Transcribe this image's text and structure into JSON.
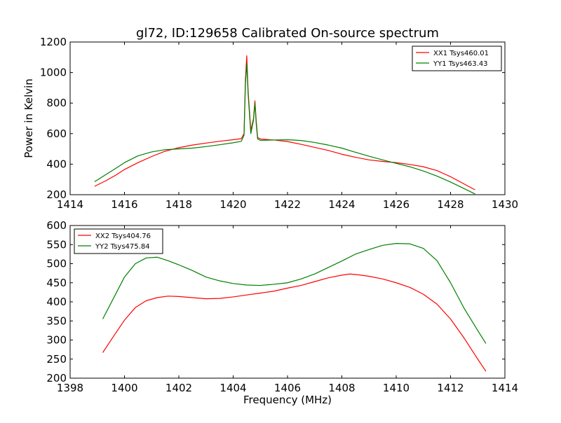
{
  "title": "gl72, ID:129658 Calibrated On-source spectrum",
  "chart_data": [
    {
      "type": "line",
      "ylabel": "Power in Kelvin",
      "xlabel": "",
      "xlim": [
        1414,
        1430
      ],
      "ylim": [
        200,
        1200
      ],
      "xticks": [
        1414,
        1416,
        1418,
        1420,
        1422,
        1424,
        1426,
        1428,
        1430
      ],
      "yticks": [
        200,
        400,
        600,
        800,
        1000,
        1200
      ],
      "grid": false,
      "legend_position": "top-right",
      "series": [
        {
          "name": "XX1 Tsys460.01",
          "color": "#ff0000",
          "x": [
            1414.9,
            1415.3,
            1415.7,
            1416.0,
            1416.5,
            1417.0,
            1417.5,
            1418.0,
            1418.5,
            1419.0,
            1419.5,
            1420.0,
            1420.3,
            1420.4,
            1420.45,
            1420.5,
            1420.55,
            1420.65,
            1420.75,
            1420.8,
            1420.85,
            1420.9,
            1421.0,
            1421.5,
            1422.0,
            1422.5,
            1423.0,
            1423.5,
            1424.0,
            1424.5,
            1425.0,
            1425.5,
            1426.0,
            1426.5,
            1427.0,
            1427.5,
            1428.0,
            1428.5,
            1428.9
          ],
          "y": [
            255,
            290,
            330,
            365,
            410,
            450,
            485,
            508,
            525,
            538,
            550,
            560,
            567,
            600,
            950,
            1110,
            880,
            620,
            700,
            815,
            680,
            575,
            565,
            558,
            548,
            530,
            510,
            490,
            465,
            445,
            428,
            418,
            410,
            398,
            383,
            358,
            318,
            270,
            232
          ]
        },
        {
          "name": "YY1 Tsys463.43",
          "color": "#008000",
          "x": [
            1414.9,
            1415.3,
            1415.7,
            1416.0,
            1416.5,
            1417.0,
            1417.5,
            1418.0,
            1418.5,
            1419.0,
            1419.5,
            1420.0,
            1420.3,
            1420.4,
            1420.45,
            1420.5,
            1420.55,
            1420.65,
            1420.75,
            1420.8,
            1420.85,
            1420.9,
            1421.0,
            1421.5,
            1422.0,
            1422.5,
            1423.0,
            1423.5,
            1424.0,
            1424.5,
            1425.0,
            1425.5,
            1426.0,
            1426.5,
            1427.0,
            1427.5,
            1428.0,
            1428.5,
            1428.9
          ],
          "y": [
            285,
            330,
            375,
            410,
            455,
            480,
            495,
            500,
            505,
            515,
            527,
            540,
            550,
            590,
            920,
            1060,
            860,
            600,
            690,
            800,
            660,
            565,
            556,
            558,
            560,
            555,
            542,
            525,
            505,
            478,
            452,
            428,
            405,
            383,
            355,
            322,
            283,
            240,
            205
          ]
        }
      ]
    },
    {
      "type": "line",
      "ylabel": "",
      "xlabel": "Frequency (MHz)",
      "xlim": [
        1398,
        1414
      ],
      "ylim": [
        200,
        600
      ],
      "xticks": [
        1398,
        1400,
        1402,
        1404,
        1406,
        1408,
        1410,
        1412,
        1414
      ],
      "yticks": [
        200,
        250,
        300,
        350,
        400,
        450,
        500,
        550,
        600
      ],
      "grid": false,
      "legend_position": "top-left",
      "series": [
        {
          "name": "XX2 Tsys404.76",
          "color": "#ff0000",
          "x": [
            1399.2,
            1399.6,
            1400.0,
            1400.4,
            1400.8,
            1401.2,
            1401.6,
            1402.0,
            1402.5,
            1403.0,
            1403.5,
            1404.0,
            1404.5,
            1405.0,
            1405.5,
            1406.0,
            1406.5,
            1407.0,
            1407.5,
            1408.0,
            1408.3,
            1408.7,
            1409.0,
            1409.5,
            1410.0,
            1410.5,
            1411.0,
            1411.5,
            1412.0,
            1412.5,
            1413.0,
            1413.3
          ],
          "y": [
            267,
            310,
            352,
            385,
            403,
            411,
            415,
            414,
            411,
            408,
            409,
            413,
            418,
            423,
            428,
            436,
            443,
            453,
            463,
            470,
            473,
            470,
            467,
            460,
            450,
            438,
            420,
            394,
            355,
            305,
            250,
            218
          ]
        },
        {
          "name": "YY2 Tsys475.84",
          "color": "#008000",
          "x": [
            1399.2,
            1399.6,
            1400.0,
            1400.4,
            1400.8,
            1401.2,
            1401.6,
            1402.0,
            1402.5,
            1403.0,
            1403.5,
            1404.0,
            1404.5,
            1405.0,
            1405.5,
            1406.0,
            1406.5,
            1407.0,
            1407.5,
            1408.0,
            1408.5,
            1409.0,
            1409.5,
            1410.0,
            1410.5,
            1411.0,
            1411.5,
            1412.0,
            1412.5,
            1413.0,
            1413.3
          ],
          "y": [
            355,
            410,
            465,
            500,
            515,
            517,
            508,
            497,
            482,
            465,
            455,
            448,
            444,
            443,
            446,
            450,
            460,
            473,
            490,
            507,
            525,
            537,
            548,
            553,
            552,
            540,
            508,
            450,
            383,
            325,
            291
          ]
        }
      ]
    }
  ]
}
